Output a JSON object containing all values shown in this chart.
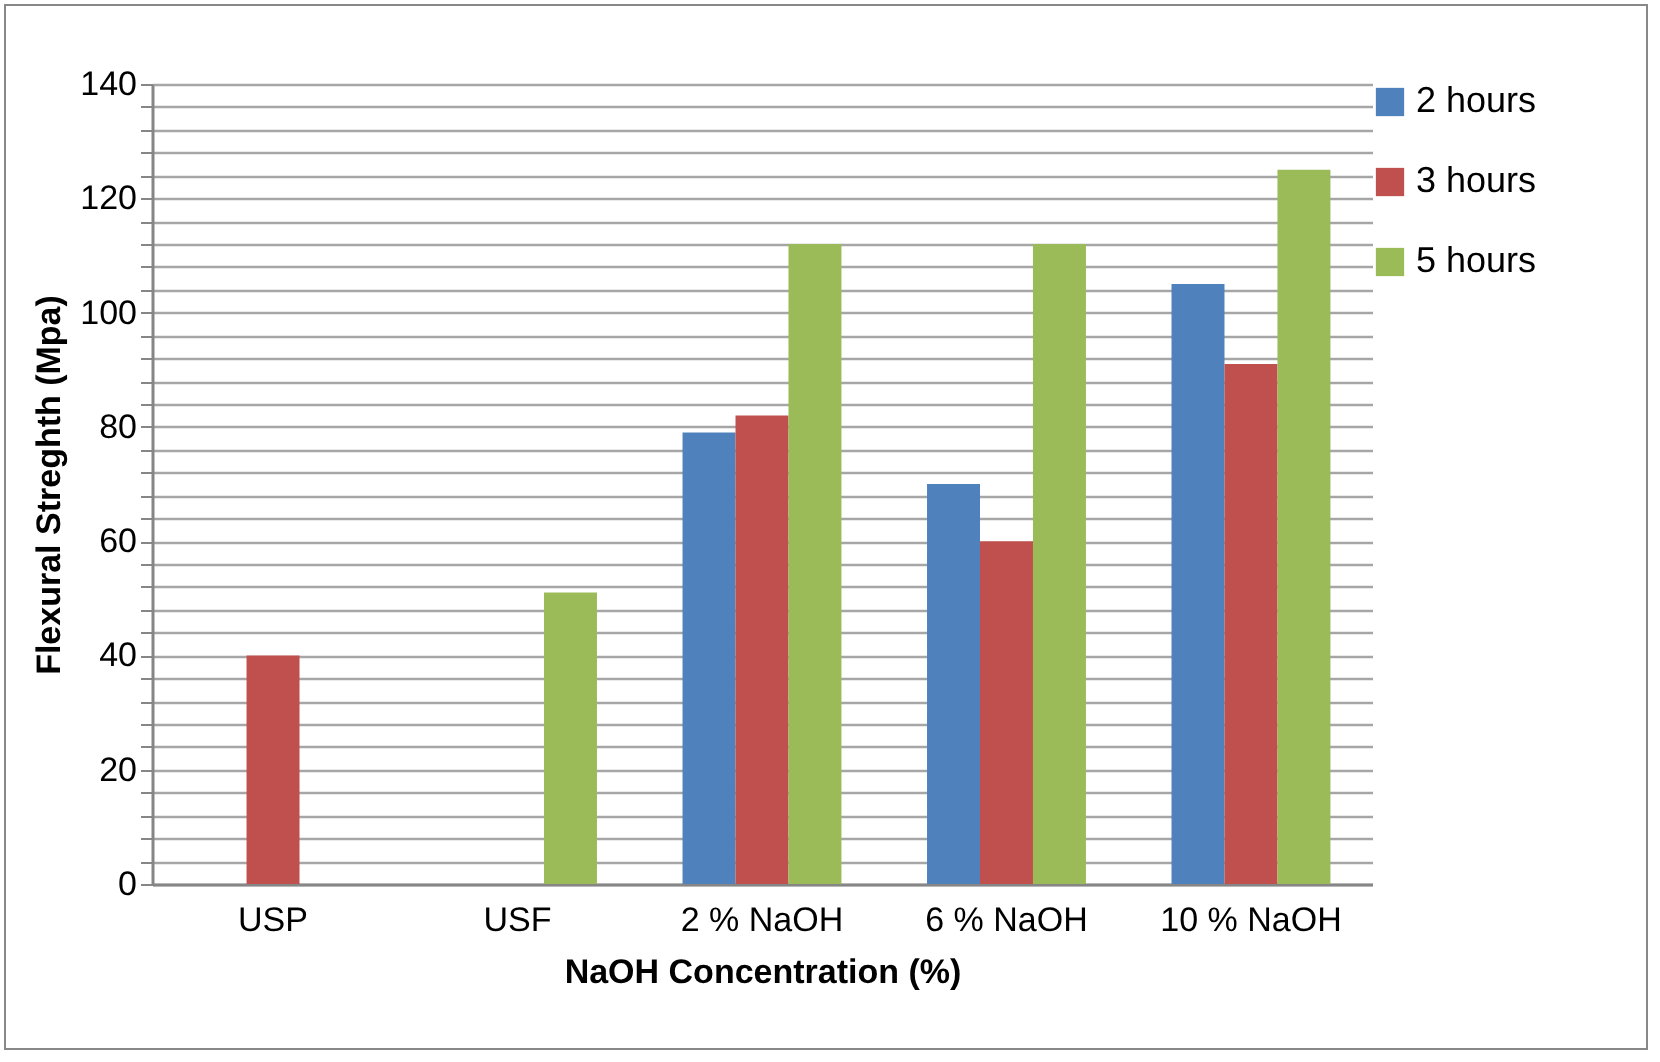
{
  "chart_data": {
    "type": "bar",
    "xlabel": "NaOH Concentration (%)",
    "ylabel": "Flexural Streghth (Mpa)",
    "categories": [
      "USP",
      "USF",
      "2 % NaOH",
      "6 % NaOH",
      "10 % NaOH"
    ],
    "series": [
      {
        "name": "2 hours",
        "color": "#4f81bd",
        "values": [
          null,
          null,
          79,
          70,
          105
        ]
      },
      {
        "name": "3 hours",
        "color": "#c0504d",
        "values": [
          40,
          null,
          82,
          60,
          91
        ]
      },
      {
        "name": "5 hours",
        "color": "#9bbb59",
        "values": [
          null,
          51,
          112,
          112,
          125
        ]
      }
    ],
    "ylim": [
      0,
      140
    ],
    "yticks": [
      0,
      {
        "value": 4,
        "label": null
      },
      {
        "value": 8,
        "label": null
      },
      {
        "value": 12,
        "label": null
      },
      {
        "value": 16,
        "label": null
      },
      20,
      {
        "value": 24,
        "label": null
      },
      {
        "value": 28,
        "label": null
      },
      {
        "value": 32,
        "label": null
      },
      {
        "value": 36,
        "label": null
      },
      40,
      {
        "value": 44,
        "label": null
      },
      {
        "value": 48,
        "label": null
      },
      {
        "value": 52,
        "label": null
      },
      {
        "value": 56,
        "label": null
      },
      60,
      {
        "value": 64,
        "label": null
      },
      {
        "value": 68,
        "label": null
      },
      {
        "value": 72,
        "label": null
      },
      {
        "value": 76,
        "label": null
      },
      80,
      {
        "value": 84,
        "label": null
      },
      {
        "value": 88,
        "label": null
      },
      {
        "value": 92,
        "label": null
      },
      {
        "value": 96,
        "label": null
      },
      100,
      {
        "value": 104,
        "label": null
      },
      {
        "value": 108,
        "label": null
      },
      {
        "value": 112,
        "label": null
      },
      {
        "value": 116,
        "label": null
      },
      120,
      {
        "value": 124,
        "label": null
      },
      {
        "value": 128,
        "label": null
      },
      {
        "value": 132,
        "label": null
      },
      {
        "value": 136,
        "label": null
      },
      140
    ],
    "grid": true,
    "legend": "right"
  }
}
